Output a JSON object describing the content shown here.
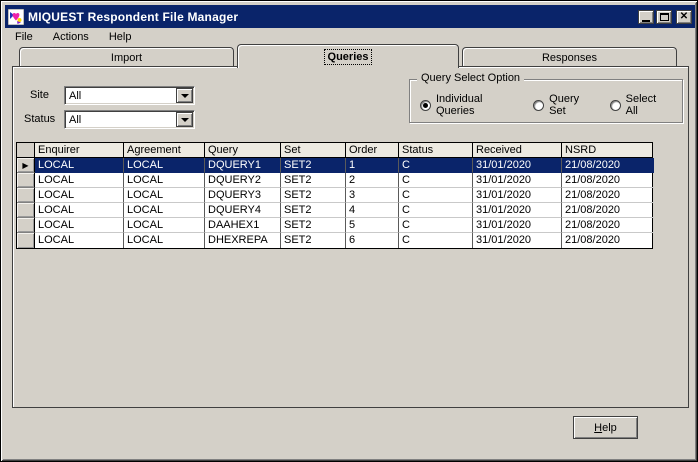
{
  "window": {
    "title": "MIQUEST Respondent File Manager"
  },
  "icons": {
    "close": "✕",
    "row_selector": "▶"
  },
  "menu": {
    "items": [
      {
        "label": "File"
      },
      {
        "label": "Actions"
      },
      {
        "label": "Help"
      }
    ]
  },
  "tabs": [
    {
      "label": "Import",
      "active": false
    },
    {
      "label": "Queries",
      "active": true
    },
    {
      "label": "Responses",
      "active": false
    }
  ],
  "filters": {
    "site_label": "Site",
    "site_value": "All",
    "status_label": "Status",
    "status_value": "All"
  },
  "query_select": {
    "title": "Query Select Option",
    "options": [
      {
        "label": "Individual Queries",
        "selected": true
      },
      {
        "label": "Query Set",
        "selected": false
      },
      {
        "label": "Select All",
        "selected": false
      }
    ]
  },
  "table": {
    "columns": [
      "Enquirer",
      "Agreement",
      "Query",
      "Set",
      "Order",
      "Status",
      "Received",
      "NSRD"
    ],
    "rows": [
      [
        "LOCAL",
        "LOCAL",
        "DQUERY1",
        "SET2",
        "1",
        "C",
        "31/01/2020",
        "21/08/2020"
      ],
      [
        "LOCAL",
        "LOCAL",
        "DQUERY2",
        "SET2",
        "2",
        "C",
        "31/01/2020",
        "21/08/2020"
      ],
      [
        "LOCAL",
        "LOCAL",
        "DQUERY3",
        "SET2",
        "3",
        "C",
        "31/01/2020",
        "21/08/2020"
      ],
      [
        "LOCAL",
        "LOCAL",
        "DQUERY4",
        "SET2",
        "4",
        "C",
        "31/01/2020",
        "21/08/2020"
      ],
      [
        "LOCAL",
        "LOCAL",
        "DAAHEX1",
        "SET2",
        "5",
        "C",
        "31/01/2020",
        "21/08/2020"
      ],
      [
        "LOCAL",
        "LOCAL",
        "DHEXREPA",
        "SET2",
        "6",
        "C",
        "31/01/2020",
        "21/08/2020"
      ]
    ],
    "selected_row_index": 0
  },
  "footer": {
    "help_label": "Help"
  },
  "colors": {
    "titlebar": "#0a246a",
    "highlight": "#0a246a",
    "dialog": "#d4d0c8"
  }
}
